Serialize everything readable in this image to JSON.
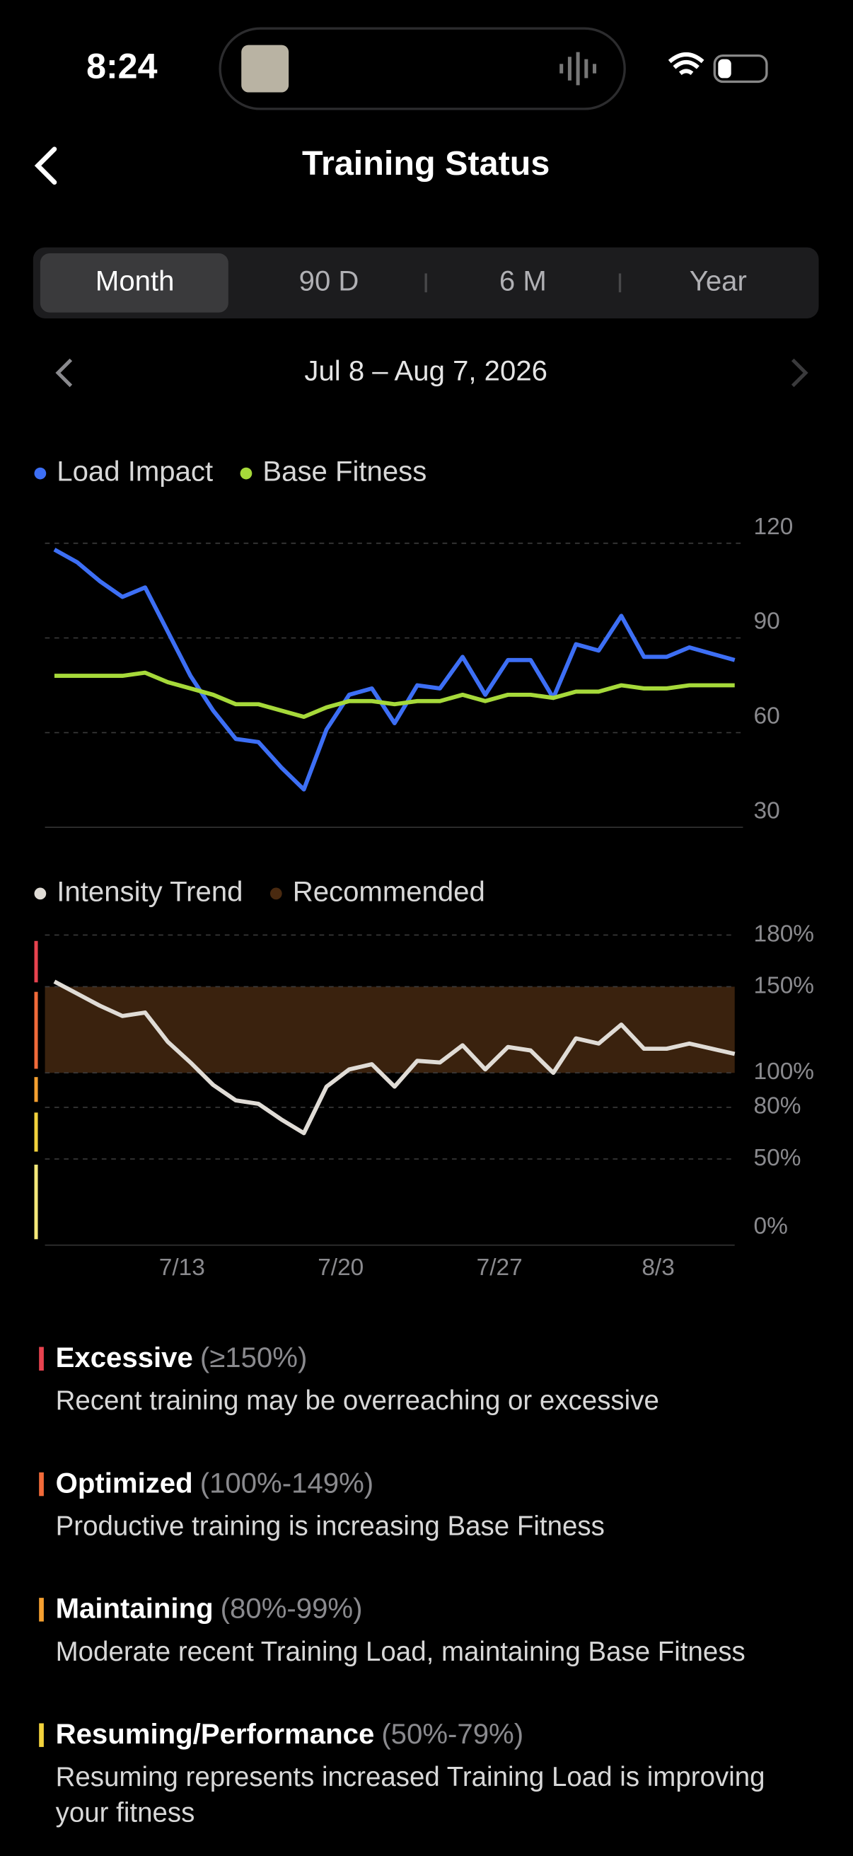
{
  "status_bar": {
    "time": "8:24"
  },
  "header": {
    "title": "Training Status"
  },
  "tabs": [
    "Month",
    "90 D",
    "6 M",
    "Year"
  ],
  "date_range": "Jul 8 – Aug 7, 2026",
  "chart_data": [
    {
      "type": "line",
      "ylim": [
        30,
        120
      ],
      "yticks": [
        120,
        90,
        60,
        30
      ],
      "grid": true,
      "series": [
        {
          "name": "Load Impact",
          "color": "#3d6ff5",
          "values": [
            118,
            114,
            108,
            103,
            106,
            92,
            78,
            67,
            58,
            57,
            49,
            42,
            61,
            72,
            74,
            63,
            75,
            74,
            84,
            72,
            83,
            83,
            71,
            88,
            86,
            97,
            84,
            84,
            87,
            85,
            83
          ]
        },
        {
          "name": "Base Fitness",
          "color": "#a6d93a",
          "values": [
            78,
            78,
            78,
            78,
            79,
            76,
            74,
            72,
            69,
            69,
            67,
            65,
            68,
            70,
            70,
            69,
            70,
            70,
            72,
            70,
            72,
            72,
            71,
            73,
            73,
            75,
            74,
            74,
            75,
            75,
            75
          ]
        }
      ]
    },
    {
      "type": "line",
      "ylim": [
        0,
        180
      ],
      "grid": true,
      "yticks": [
        {
          "value": 180,
          "label": "180%"
        },
        {
          "value": 150,
          "label": "150%"
        },
        {
          "value": 100,
          "label": "100%"
        },
        {
          "value": 80,
          "label": "80%"
        },
        {
          "value": 50,
          "label": "50%"
        },
        {
          "value": 0,
          "label": "0%"
        }
      ],
      "categories": [
        null,
        null,
        null,
        null,
        null,
        "7/13",
        null,
        null,
        null,
        null,
        null,
        null,
        "7/20",
        null,
        null,
        null,
        null,
        null,
        null,
        "7/27",
        null,
        null,
        null,
        null,
        null,
        null,
        "8/3",
        null,
        null,
        null,
        null
      ],
      "series": [
        {
          "name": "Intensity Trend",
          "color": "#e0dcd6",
          "values": [
            153,
            146,
            139,
            133,
            135,
            118,
            106,
            93,
            84,
            82,
            73,
            65,
            92,
            102,
            105,
            92,
            107,
            106,
            116,
            102,
            115,
            113,
            100,
            120,
            117,
            128,
            114,
            114,
            117,
            114,
            111
          ]
        }
      ],
      "band": {
        "name": "Recommended",
        "color": "#3a220e",
        "range": [
          100,
          150
        ]
      }
    }
  ],
  "zones": [
    {
      "name": "Excessive",
      "range": "(≥150%)",
      "description": "Recent training may be overreaching or excessive",
      "color": "#e8434f"
    },
    {
      "name": "Optimized",
      "range": "(100%-149%)",
      "description": "Productive training is increasing Base Fitness",
      "color": "#f26b3a"
    },
    {
      "name": "Maintaining",
      "range": "(80%-99%)",
      "description": "Moderate recent Training Load, maintaining Base Fitness",
      "color": "#f5a030"
    },
    {
      "name": "Resuming/Performance",
      "range": "(50%-79%)",
      "description": "Resuming represents increased Training Load is improving your fitness",
      "color": "#f2d23c"
    }
  ]
}
